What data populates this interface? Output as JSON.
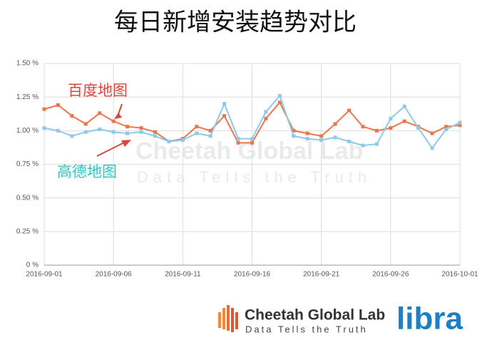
{
  "chart_data": {
    "type": "line",
    "title": "每日新增安装趋势对比",
    "categories": [
      "2016-09-01",
      null,
      null,
      null,
      null,
      "2016-09-06",
      null,
      null,
      null,
      null,
      "2016-09-11",
      null,
      null,
      null,
      null,
      "2016-09-16",
      null,
      null,
      null,
      null,
      "2016-09-21",
      null,
      null,
      null,
      null,
      "2016-09-26",
      null,
      null,
      null,
      null,
      "2016-10-01"
    ],
    "series": [
      {
        "name": "百度地图",
        "color": "#e8784b",
        "label_color": "#d9463e",
        "values": [
          1.16,
          1.19,
          1.11,
          1.05,
          1.13,
          1.07,
          1.03,
          1.02,
          0.99,
          0.92,
          0.94,
          1.03,
          1.0,
          1.11,
          0.91,
          0.91,
          1.09,
          1.21,
          1.0,
          0.98,
          0.96,
          1.05,
          1.15,
          1.03,
          1.0,
          1.02,
          1.07,
          1.03,
          0.98,
          1.03,
          1.04
        ]
      },
      {
        "name": "高德地图",
        "color": "#8fc9e8",
        "label_color": "#2ec4c4",
        "values": [
          1.02,
          1.0,
          0.96,
          0.99,
          1.01,
          0.99,
          0.98,
          0.99,
          0.96,
          0.92,
          0.93,
          0.98,
          0.96,
          1.2,
          0.94,
          0.94,
          1.14,
          1.26,
          0.96,
          0.94,
          0.93,
          0.95,
          0.92,
          0.89,
          0.9,
          1.09,
          1.18,
          1.02,
          0.87,
          1.01,
          1.06
        ]
      }
    ],
    "ylim": [
      0,
      1.5
    ],
    "yticks": [
      {
        "value": 0,
        "label": "0 %"
      },
      {
        "value": 0.25,
        "label": "0.25 %"
      },
      {
        "value": 0.5,
        "label": "0.50 %"
      },
      {
        "value": 0.75,
        "label": "0.75 %"
      },
      {
        "value": 1,
        "label": "1.00 %"
      },
      {
        "value": 1.25,
        "label": "1.25 %"
      },
      {
        "value": 1.5,
        "label": "1.50 %"
      }
    ],
    "grid": true
  },
  "footer": {
    "brand": "Cheetah Global Lab",
    "tagline": "Data Tells the Truth",
    "product": "libra"
  }
}
